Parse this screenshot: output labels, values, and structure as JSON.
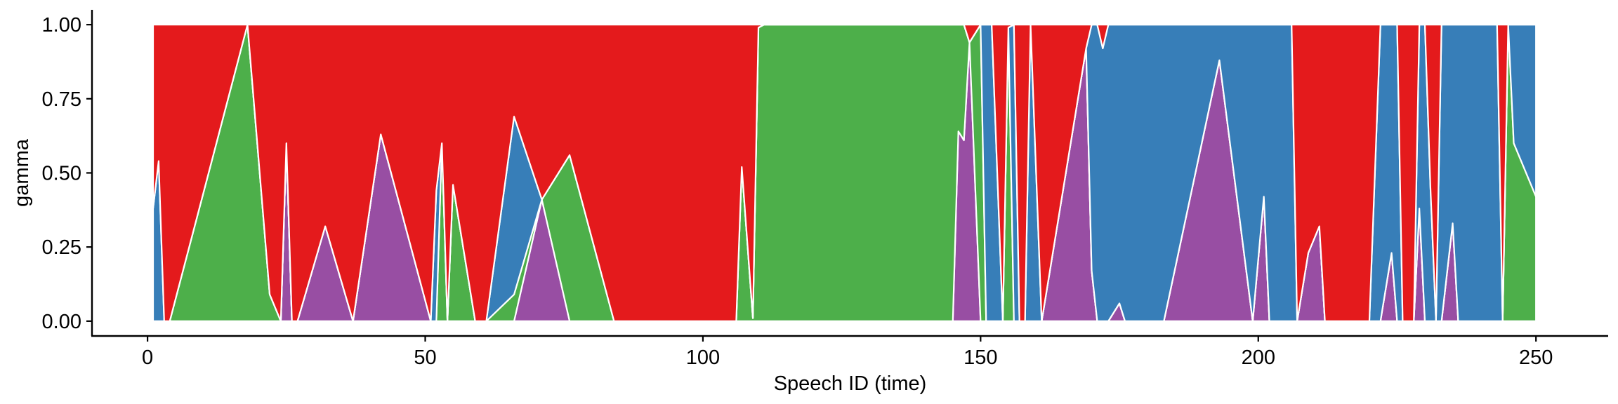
{
  "chart_data": {
    "type": "area",
    "stacked": true,
    "normalized": true,
    "title": "",
    "xlabel": "Speech ID (time)",
    "ylabel": "gamma",
    "xlim": [
      -10,
      263
    ],
    "ylim": [
      -0.05,
      1.05
    ],
    "x_ticks": [
      0,
      50,
      100,
      150,
      200,
      250
    ],
    "y_ticks": [
      0.0,
      0.25,
      0.5,
      0.75,
      1.0
    ],
    "x_tick_labels": [
      "0",
      "50",
      "100",
      "150",
      "200",
      "250"
    ],
    "y_tick_labels": [
      "0.00",
      "0.25",
      "0.50",
      "0.75",
      "1.00"
    ],
    "grid": false,
    "legend": "none",
    "stack_order_bottom_to_top": [
      "purple",
      "green",
      "blue",
      "red"
    ],
    "colors": {
      "purple": "#984EA3",
      "green": "#4DAF4A",
      "blue": "#377EB8",
      "red": "#E41A1C",
      "outline": "#FFFFFF",
      "axis": "#000000"
    },
    "x": [
      1,
      2,
      3,
      4,
      18,
      22,
      24,
      25,
      26,
      27,
      32,
      37,
      42,
      51,
      52,
      53,
      54,
      55,
      59,
      61,
      66,
      71,
      76,
      84,
      106,
      107,
      109,
      110,
      111,
      112,
      113,
      114,
      121,
      122,
      139,
      145,
      146,
      147,
      148,
      150,
      151,
      152,
      154,
      155,
      156,
      157,
      158,
      159,
      161,
      169,
      170,
      171,
      172,
      173,
      175,
      176,
      183,
      193,
      199,
      201,
      202,
      203,
      206,
      207,
      209,
      211,
      212,
      220,
      222,
      224,
      225,
      226,
      228,
      229,
      230,
      231,
      232,
      233,
      235,
      236,
      243,
      244,
      245,
      246,
      250
    ],
    "series": [
      {
        "name": "purple",
        "values": [
          0,
          0,
          0,
          0,
          0,
          0,
          0,
          0.6,
          0,
          0,
          0.32,
          0,
          0.63,
          0,
          0,
          0,
          0,
          0,
          0,
          0,
          0,
          0.41,
          0,
          0,
          0,
          0,
          0,
          0,
          0,
          0,
          0,
          0,
          0,
          0,
          0,
          0,
          0.64,
          0.61,
          0.94,
          0,
          0,
          0,
          0,
          0,
          0,
          0,
          0,
          0,
          0,
          0.92,
          0.17,
          0,
          0,
          0,
          0.06,
          0,
          0,
          0.88,
          0,
          0.42,
          0,
          0,
          0,
          0,
          0.23,
          0.32,
          0,
          0,
          0,
          0.23,
          0,
          0,
          0,
          0.38,
          0,
          0,
          0,
          0,
          0.33,
          0,
          0,
          0,
          0,
          0,
          0
        ],
        "stacked_tops": [
          0,
          0,
          0,
          0,
          0,
          0,
          0,
          0.6,
          0,
          0,
          0.32,
          0,
          0.63,
          0,
          0,
          0,
          0,
          0,
          0,
          0,
          0,
          0.41,
          0,
          0,
          0,
          0,
          0,
          0,
          0,
          0,
          0,
          0,
          0,
          0,
          0,
          0,
          0.64,
          0.61,
          0.94,
          0,
          0,
          0,
          0,
          0,
          0,
          0,
          0,
          0,
          0,
          0.92,
          0.17,
          0,
          0,
          0,
          0.06,
          0,
          0,
          0.88,
          0,
          0.42,
          0,
          0,
          0,
          0,
          0.23,
          0.32,
          0,
          0,
          0,
          0.23,
          0,
          0,
          0,
          0.38,
          0,
          0,
          0,
          0,
          0.33,
          0,
          0,
          0,
          0,
          0,
          0
        ]
      },
      {
        "name": "green",
        "values": [
          0,
          0,
          0,
          0,
          1,
          0.09,
          0,
          0,
          0,
          0,
          0,
          0,
          0,
          0,
          0,
          0.6,
          0,
          0.46,
          0,
          0,
          0.09,
          0,
          0.56,
          0,
          0,
          0.52,
          0.01,
          0.99,
          1,
          1,
          1,
          1,
          1,
          1,
          1,
          1,
          0.36,
          0.39,
          0,
          1,
          0,
          0,
          0,
          0.99,
          0,
          0,
          0,
          0,
          0,
          0,
          0,
          0,
          0,
          0,
          0,
          0,
          0,
          0,
          0,
          0,
          0,
          0,
          0,
          0,
          0,
          0,
          0,
          0,
          0,
          0,
          0,
          0,
          0,
          0,
          0,
          0,
          0,
          0,
          0,
          0,
          0,
          0,
          1,
          0.6,
          0.42
        ],
        "stacked_tops": [
          0,
          0,
          0,
          0,
          1,
          0.09,
          0,
          0.6,
          0,
          0,
          0.32,
          0,
          0.63,
          0,
          0,
          0.6,
          0,
          0.46,
          0,
          0,
          0.09,
          0.41,
          0.56,
          0,
          0,
          0.52,
          0.01,
          0.99,
          1,
          1,
          1,
          1,
          1,
          1,
          1,
          1,
          1,
          1,
          0.94,
          1,
          0,
          0,
          0,
          0.99,
          0,
          0,
          0,
          0,
          0,
          0.92,
          0.17,
          0,
          0,
          0,
          0.06,
          0,
          0,
          0.88,
          0,
          0.42,
          0,
          0,
          0,
          0,
          0.23,
          0.32,
          0,
          0,
          0,
          0.23,
          0,
          0,
          0,
          0.38,
          0,
          0,
          0,
          0,
          0.33,
          0,
          0,
          0,
          1,
          0.6,
          0.42
        ]
      },
      {
        "name": "blue",
        "values": [
          0.38,
          0.54,
          0,
          0,
          0,
          0,
          0,
          0,
          0,
          0,
          0,
          0,
          0,
          0,
          0.44,
          0,
          0,
          0,
          0,
          0,
          0.6,
          0,
          0,
          0,
          0,
          0,
          0,
          0,
          0,
          0,
          0,
          0,
          0,
          0,
          0,
          0,
          0,
          0,
          0,
          0,
          1,
          1,
          0,
          0,
          1,
          0,
          0,
          1,
          0,
          0,
          0.83,
          1,
          0.92,
          1,
          0.94,
          1,
          1,
          0.12,
          1,
          0.58,
          1,
          1,
          1,
          0,
          0,
          0,
          0,
          0,
          1,
          0.77,
          1,
          0,
          0,
          0.62,
          1,
          0.45,
          0,
          1,
          0.67,
          1,
          1,
          0,
          0,
          0.4,
          0.58
        ],
        "stacked_tops": [
          0.38,
          0.54,
          0,
          0,
          1,
          0.09,
          0,
          0.6,
          0,
          0,
          0.32,
          0,
          0.63,
          0,
          0.44,
          0.6,
          0,
          0.46,
          0,
          0,
          0.69,
          0.41,
          0.56,
          0,
          0,
          0.52,
          0.01,
          0.99,
          1,
          1,
          1,
          1,
          1,
          1,
          1,
          1,
          1,
          1,
          0.94,
          1,
          1,
          1,
          0,
          0.99,
          1,
          0,
          0,
          1,
          0,
          0.92,
          1,
          1,
          0.92,
          1,
          1,
          1,
          1,
          1,
          1,
          1,
          1,
          1,
          1,
          0,
          0.23,
          0.32,
          0,
          0,
          1,
          1,
          1,
          0,
          0,
          1,
          1,
          0.45,
          0,
          1,
          1,
          1,
          1,
          0,
          1,
          1,
          1
        ]
      },
      {
        "name": "red",
        "values": [
          0.62,
          0.46,
          1,
          1,
          0,
          0.91,
          1,
          0.4,
          1,
          1,
          0.68,
          1,
          0.37,
          1,
          0.56,
          0.4,
          1,
          0.54,
          1,
          1,
          0.31,
          0.59,
          0.44,
          1,
          1,
          0.48,
          0.99,
          0.01,
          0,
          0,
          0,
          0,
          0,
          0,
          0,
          0,
          0,
          0,
          0.06,
          0,
          0,
          0,
          1,
          0.01,
          0,
          1,
          1,
          0,
          1,
          0.08,
          0,
          0,
          0.08,
          0,
          0,
          0,
          0,
          0,
          0,
          0,
          0,
          0,
          0,
          1,
          0.77,
          0.68,
          1,
          1,
          0,
          0,
          0,
          1,
          1,
          0,
          0,
          0.55,
          1,
          0,
          0,
          0,
          0,
          1,
          0,
          0,
          0
        ],
        "stacked_tops": [
          1,
          1,
          1,
          1,
          1,
          1,
          1,
          1,
          1,
          1,
          1,
          1,
          1,
          1,
          1,
          1,
          1,
          1,
          1,
          1,
          1,
          1,
          1,
          1,
          1,
          1,
          1,
          1,
          1,
          1,
          1,
          1,
          1,
          1,
          1,
          1,
          1,
          1,
          1,
          1,
          1,
          1,
          1,
          1,
          1,
          1,
          1,
          1,
          1,
          1,
          1,
          1,
          1,
          1,
          1,
          1,
          1,
          1,
          1,
          1,
          1,
          1,
          1,
          1,
          1,
          1,
          1,
          1,
          1,
          1,
          1,
          1,
          1,
          1,
          1,
          1,
          1,
          1,
          1,
          1,
          1,
          1,
          1,
          1,
          1
        ]
      }
    ]
  }
}
